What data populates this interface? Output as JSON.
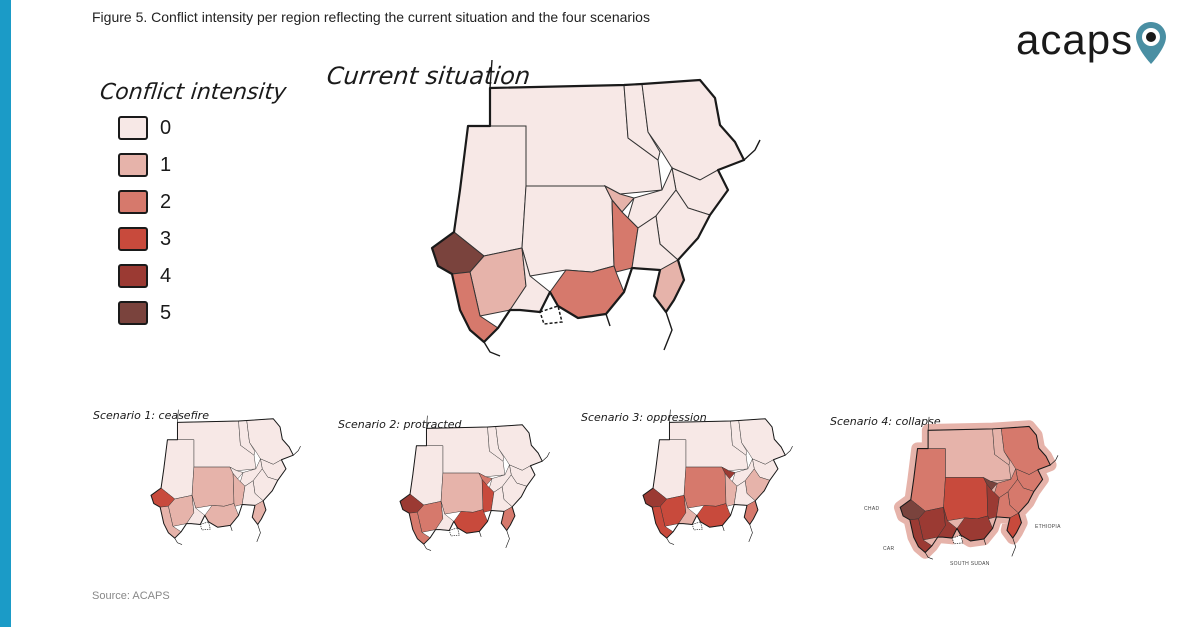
{
  "figure_title": "Figure 5. Conflict intensity per region reflecting the current situation and the four scenarios",
  "logo_text": "acaps",
  "legend": {
    "title": "Conflict intensity",
    "levels": [
      {
        "label": "0",
        "color": "#f7e8e6"
      },
      {
        "label": "1",
        "color": "#e6b3aa"
      },
      {
        "label": "2",
        "color": "#d6796c"
      },
      {
        "label": "3",
        "color": "#c84a3c"
      },
      {
        "label": "4",
        "color": "#9b3a33"
      },
      {
        "label": "5",
        "color": "#7a433d"
      }
    ]
  },
  "maps": {
    "current": {
      "title": "Current situation",
      "regions": [
        0,
        0,
        0,
        0,
        0,
        0,
        1,
        0,
        0,
        2,
        0,
        5,
        1,
        2,
        0,
        2,
        1
      ]
    },
    "scenario1": {
      "title": "Scenario 1: ceasefire",
      "regions": [
        0,
        0,
        0,
        0,
        0,
        1,
        0,
        0,
        0,
        1,
        0,
        3,
        1,
        1,
        0,
        1,
        1
      ]
    },
    "scenario2": {
      "title": "Scenario 2: protracted",
      "regions": [
        0,
        0,
        0,
        0,
        0,
        1,
        2,
        0,
        0,
        3,
        0,
        4,
        2,
        2,
        0,
        3,
        2
      ]
    },
    "scenario3": {
      "title": "Scenario 3: oppression",
      "regions": [
        0,
        0,
        0,
        0,
        0,
        2,
        4,
        0,
        1,
        1,
        0,
        4,
        3,
        3,
        1,
        3,
        2
      ]
    },
    "scenario4": {
      "title": "Scenario 4: collapse",
      "regions": [
        1,
        1,
        2,
        2,
        2,
        3,
        5,
        2,
        2,
        4,
        2,
        5,
        4,
        4,
        4,
        4,
        3
      ]
    }
  },
  "country_labels": {
    "chad": "CHAD",
    "car": "CAR",
    "south_sudan": "SOUTH SUDAN",
    "ethiopia": "ETHIOPIA"
  },
  "source": "Source: ACAPS",
  "colors": {
    "accent": "#1b9bc7",
    "logo_pin": "#4a8fa3"
  }
}
